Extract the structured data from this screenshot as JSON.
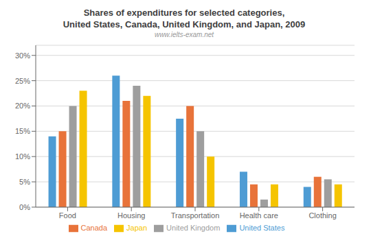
{
  "chart_data": {
    "type": "bar",
    "title": "Shares of expenditures for selected categories,\nUnited States, Canada, United Kingdom, and Japan, 2009",
    "annotations": [
      "www.ielts-exam.net"
    ],
    "categories": [
      "Food",
      "Housing",
      "Transportation",
      "Health care",
      "Clothing"
    ],
    "series": [
      {
        "name": "United States",
        "color": "#4E9CD4",
        "values": [
          14,
          26,
          17.5,
          7,
          4
        ]
      },
      {
        "name": "Canada",
        "color": "#E8733A",
        "values": [
          15,
          21,
          20,
          4.5,
          6
        ]
      },
      {
        "name": "United Kingdom",
        "color": "#9E9E9E",
        "values": [
          20,
          24,
          15,
          1.5,
          5.5
        ]
      },
      {
        "name": "Japan",
        "color": "#F5C400",
        "values": [
          23,
          22,
          10,
          4.5,
          4.5
        ]
      }
    ],
    "ylim": [
      0,
      32
    ],
    "yticks": [
      {
        "value": 0,
        "label": "0%"
      },
      {
        "value": 5,
        "label": "5%"
      },
      {
        "value": 10,
        "label": "10%"
      },
      {
        "value": 15,
        "label": "15%"
      },
      {
        "value": 20,
        "label": "20%"
      },
      {
        "value": 25,
        "label": "25%"
      },
      {
        "value": 30,
        "label": "30%"
      }
    ],
    "grid": true,
    "legend": "bottom"
  }
}
